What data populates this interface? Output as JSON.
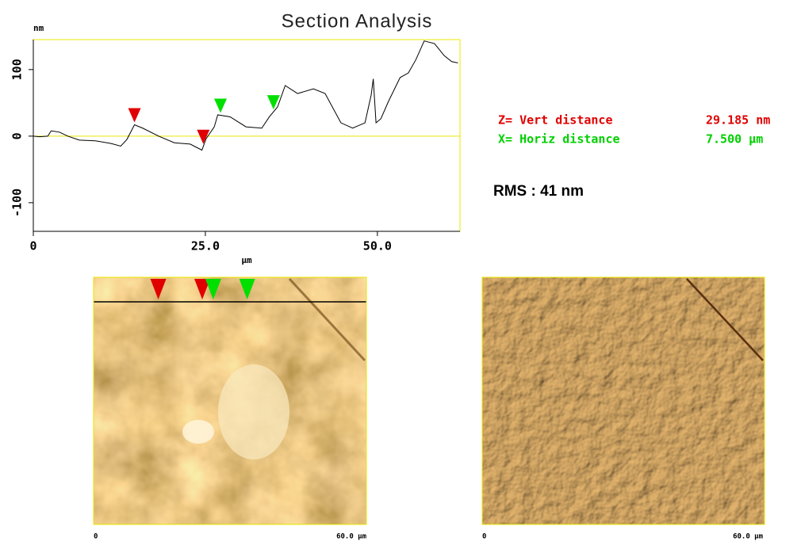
{
  "chart_data": {
    "type": "line",
    "title": "Section Analysis",
    "y_label": "nm",
    "x_label": "µm",
    "x": [
      0,
      0.9,
      2.1,
      2.6,
      3.8,
      5,
      6.7,
      9,
      11.3,
      12.7,
      13.6,
      14.7,
      15.9,
      18.2,
      20.5,
      22.8,
      24.5,
      25.1,
      26.3,
      26.8,
      28.6,
      30.9,
      33.2,
      34.3,
      35.5,
      36.6,
      38.4,
      40.7,
      42.4,
      44.7,
      46.4,
      48.2,
      49.1,
      49.4,
      49.8,
      50.5,
      51.6,
      53.3,
      54.5,
      55.6,
      56.8,
      58.3,
      59.7,
      60.8,
      61.7
    ],
    "values": [
      0,
      -1,
      0,
      8,
      6,
      0,
      -6,
      -7,
      -11,
      -15,
      -5,
      17,
      12,
      0,
      -10,
      -12,
      -21,
      -4,
      14,
      32,
      29,
      14,
      12,
      29,
      44,
      76,
      64,
      71,
      64,
      20,
      12,
      20,
      62,
      86,
      20,
      26,
      52,
      88,
      95,
      115,
      143,
      139,
      121,
      112,
      110
    ],
    "color": "#000000",
    "xlim": [
      0,
      62
    ],
    "ylim": [
      -143,
      145
    ],
    "xticks": [
      0,
      {
        "value": 25,
        "label": "25.0"
      },
      {
        "value": 50,
        "label": "50.0"
      }
    ],
    "yticks": [
      -100,
      0,
      100
    ],
    "cursors": [
      {
        "color": "#e00000",
        "x": 14.7
      },
      {
        "color": "#e00000",
        "x": 24.7
      },
      {
        "color": "#00e000",
        "x": 27.2
      },
      {
        "color": "#00e000",
        "x": 34.9
      }
    ]
  },
  "measurements": {
    "vert": {
      "label": "Z= Vert distance",
      "value": "29.185 nm"
    },
    "horiz": {
      "label": "X= Horiz distance",
      "value": "7.500 µm"
    },
    "rms": "RMS : 41 nm"
  },
  "images": [
    {
      "scale_start": "0",
      "scale_end": "60.0 µm"
    },
    {
      "scale_start": "0",
      "scale_end": "60.0 µm"
    }
  ]
}
